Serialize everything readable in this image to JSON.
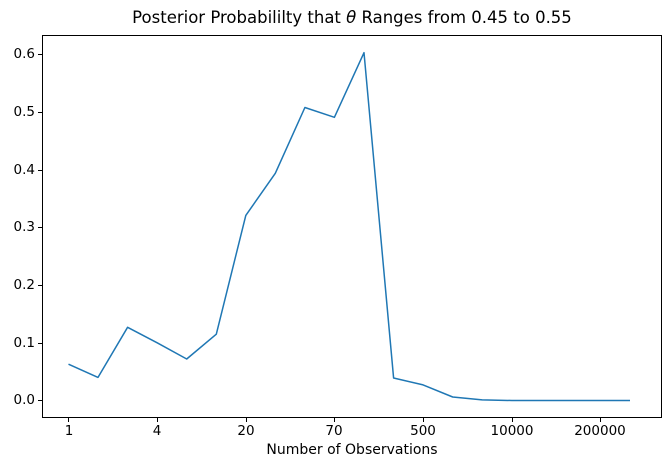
{
  "figure": {
    "title_pre": "Posterior Probabililty that ",
    "title_theta": "θ",
    "title_post": " Ranges from 0.45 to 0.55"
  },
  "chart_data": {
    "type": "line",
    "title": "Posterior Probabililty that θ Ranges from 0.45 to 0.55",
    "xlabel": "Number of Observations",
    "ylabel": "",
    "x_tick_labels": [
      "1",
      "4",
      "20",
      "70",
      "500",
      "10000",
      "200000"
    ],
    "x_tick_point_indices": [
      0,
      3,
      6,
      9,
      12,
      15,
      18
    ],
    "y_tick_labels": [
      "0.0",
      "0.1",
      "0.2",
      "0.3",
      "0.4",
      "0.5",
      "0.6"
    ],
    "y_ticks": [
      0.0,
      0.1,
      0.2,
      0.3,
      0.4,
      0.5,
      0.6
    ],
    "x_point_index": [
      0,
      1,
      2,
      3,
      4,
      5,
      6,
      7,
      8,
      9,
      10,
      11,
      12,
      13,
      14,
      15,
      16,
      17,
      18,
      19
    ],
    "values": [
      0.063,
      0.04,
      0.127,
      0.1,
      0.072,
      0.115,
      0.321,
      0.394,
      0.508,
      0.491,
      0.603,
      0.039,
      0.027,
      0.006,
      0.001,
      0.0,
      0.0,
      0.0,
      0.0,
      0.0
    ],
    "ylim": [
      -0.03,
      0.633
    ],
    "line_color": "#1f77b4",
    "grid": false,
    "legend": false,
    "x_axis_style": "points evenly spaced by index; tick labels shown at every 3rd point"
  }
}
